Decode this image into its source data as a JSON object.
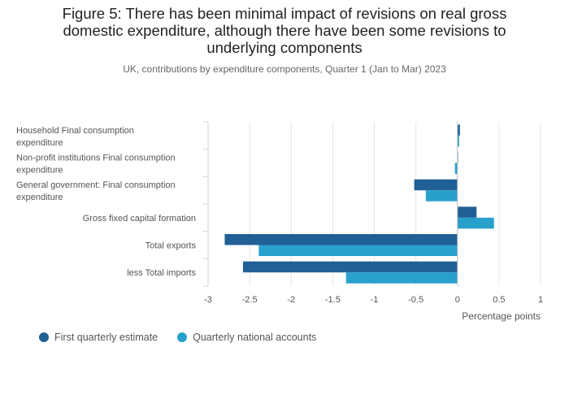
{
  "title_lines": [
    "Figure 5: There has been minimal impact of revisions on real gross",
    "domestic expenditure, although there have been some revisions to",
    "underlying components"
  ],
  "subtitle": "UK, contributions by expenditure components, Quarter 1 (Jan to Mar) 2023",
  "chart_data": {
    "type": "bar",
    "orientation": "horizontal",
    "categories": [
      [
        "Household Final consumption",
        "expenditure"
      ],
      [
        "Non-profit institutions Final consumption",
        "expenditure"
      ],
      [
        "General government: Final consumption",
        "expenditure"
      ],
      [
        "Gross fixed capital formation"
      ],
      [
        "Total exports"
      ],
      [
        "less Total imports"
      ]
    ],
    "series": [
      {
        "name": "First quarterly estimate",
        "color": "#206095",
        "values": [
          0.03,
          0.0,
          -0.52,
          0.23,
          -2.8,
          -2.58
        ]
      },
      {
        "name": "Quarterly national accounts",
        "color": "#27a0cc",
        "values": [
          0.02,
          -0.03,
          -0.38,
          0.44,
          -2.39,
          -1.34
        ]
      }
    ],
    "xlim": [
      -3,
      1
    ],
    "xticks": [
      "-3",
      "-2.5",
      "-2",
      "-1.5",
      "-1",
      "-0.5",
      "0",
      "0.5",
      "1"
    ],
    "xlabel": "Percentage points",
    "legend_position": "bottom-left"
  }
}
